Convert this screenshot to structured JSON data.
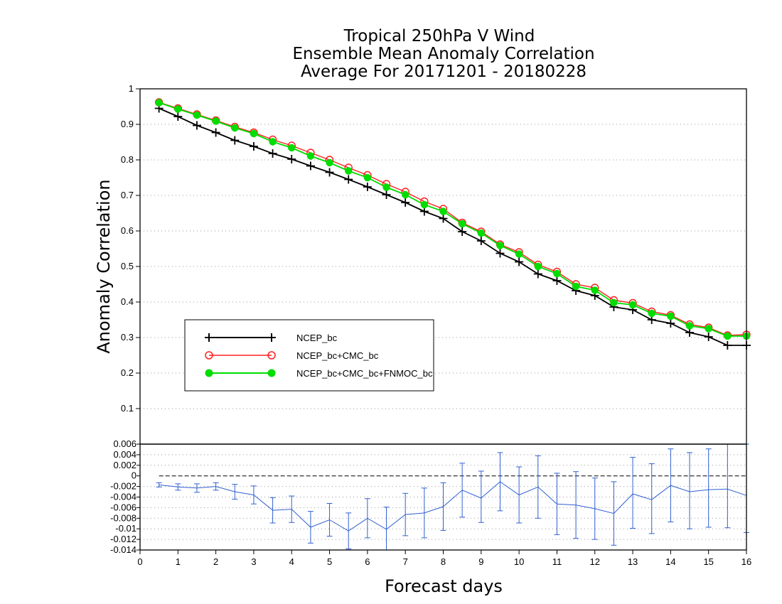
{
  "chart_data": [
    {
      "type": "line",
      "title": [
        "Tropical 250hPa V Wind",
        "Ensemble Mean Anomaly Correlation",
        "Average For 20171201 - 20180228"
      ],
      "xlabel": "Forecast days",
      "ylabel": "Anomaly Correlation",
      "xlim": [
        0,
        16
      ],
      "ylim": [
        0,
        1
      ],
      "x_ticks": [
        "0",
        "1",
        "2",
        "3",
        "4",
        "5",
        "6",
        "7",
        "8",
        "9",
        "10",
        "11",
        "12",
        "13",
        "14",
        "15",
        "16"
      ],
      "y_ticks": [
        "0.1",
        "0.2",
        "0.3",
        "0.4",
        "0.5",
        "0.6",
        "0.7",
        "0.8",
        "0.9",
        "1"
      ],
      "grid": "horizontal dotted",
      "legend_placement": "center-left",
      "x": [
        0.5,
        1,
        1.5,
        2,
        2.5,
        3,
        3.5,
        4,
        4.5,
        5,
        5.5,
        6,
        6.5,
        7,
        7.5,
        8,
        8.5,
        9,
        9.5,
        10,
        10.5,
        11,
        11.5,
        12,
        12.5,
        13,
        13.5,
        14,
        14.5,
        15,
        15.5,
        16
      ],
      "series": [
        {
          "name": "NCEP_bc",
          "color": "#000000",
          "marker": "plus",
          "values": [
            0.945,
            0.922,
            0.897,
            0.877,
            0.855,
            0.838,
            0.818,
            0.802,
            0.783,
            0.765,
            0.745,
            0.724,
            0.702,
            0.68,
            0.655,
            0.635,
            0.598,
            0.572,
            0.537,
            0.513,
            0.479,
            0.46,
            0.432,
            0.418,
            0.386,
            0.378,
            0.35,
            0.34,
            0.314,
            0.302,
            0.278,
            0.278
          ]
        },
        {
          "name": "NCEP_bc+CMC_bc",
          "color": "#ff2020",
          "marker": "open-circle",
          "values": [
            0.962,
            0.945,
            0.928,
            0.911,
            0.893,
            0.877,
            0.857,
            0.84,
            0.82,
            0.8,
            0.778,
            0.757,
            0.732,
            0.71,
            0.683,
            0.662,
            0.623,
            0.598,
            0.562,
            0.54,
            0.505,
            0.485,
            0.45,
            0.44,
            0.405,
            0.397,
            0.373,
            0.363,
            0.337,
            0.328,
            0.306,
            0.308
          ]
        },
        {
          "name": "NCEP_bc+CMC_bc+FNMOC_bc",
          "color": "#00dd00",
          "marker": "filled-circle",
          "values": [
            0.961,
            0.943,
            0.926,
            0.909,
            0.89,
            0.874,
            0.851,
            0.834,
            0.811,
            0.792,
            0.769,
            0.75,
            0.723,
            0.702,
            0.674,
            0.655,
            0.62,
            0.594,
            0.559,
            0.535,
            0.5,
            0.48,
            0.444,
            0.433,
            0.398,
            0.392,
            0.368,
            0.36,
            0.333,
            0.325,
            0.304,
            0.304
          ]
        }
      ]
    },
    {
      "type": "line",
      "xlim": [
        0,
        16
      ],
      "ylim": [
        -0.014,
        0.006
      ],
      "y_ticks": [
        "-0.014",
        "-0.012",
        "-0.01",
        "-0.008",
        "-0.006",
        "-0.004",
        "-0.002",
        "0",
        "0.002",
        "0.004",
        "0.006"
      ],
      "zero_line": "dashed",
      "grid": "horizontal dotted",
      "x": [
        0.5,
        1,
        1.5,
        2,
        2.5,
        3,
        3.5,
        4,
        4.5,
        5,
        5.5,
        6,
        6.5,
        7,
        7.5,
        8,
        8.5,
        9,
        9.5,
        10,
        10.5,
        11,
        11.5,
        12,
        12.5,
        13,
        13.5,
        14,
        14.5,
        15,
        15.5,
        16
      ],
      "series": [
        {
          "color": "#3060d0",
          "marker": "errorbar",
          "values": [
            -0.0017,
            -0.0021,
            -0.0023,
            -0.002,
            -0.003,
            -0.0036,
            -0.0065,
            -0.0063,
            -0.0097,
            -0.0083,
            -0.0104,
            -0.008,
            -0.0101,
            -0.0073,
            -0.007,
            -0.0058,
            -0.0027,
            -0.0042,
            -0.0011,
            -0.0036,
            -0.0021,
            -0.0053,
            -0.0055,
            -0.0062,
            -0.0071,
            -0.0034,
            -0.0045,
            -0.0018,
            -0.003,
            -0.0026,
            -0.0025,
            -0.0037
          ],
          "err_low": [
            -0.0021,
            -0.0027,
            -0.0031,
            -0.0027,
            -0.0044,
            -0.0053,
            -0.0089,
            -0.0088,
            -0.0127,
            -0.0114,
            -0.0138,
            -0.0117,
            -0.0143,
            -0.0113,
            -0.0117,
            -0.0103,
            -0.0078,
            -0.0088,
            -0.0066,
            -0.0089,
            -0.008,
            -0.0111,
            -0.0118,
            -0.012,
            -0.0131,
            -0.0099,
            -0.0109,
            -0.0087,
            -0.01,
            -0.0097,
            -0.0098,
            -0.0107
          ],
          "err_high": [
            -0.0013,
            -0.0015,
            -0.0015,
            -0.0013,
            -0.0016,
            -0.0019,
            -0.0041,
            -0.0038,
            -0.0067,
            -0.0052,
            -0.007,
            -0.0043,
            -0.0059,
            -0.0033,
            -0.0023,
            -0.0013,
            0.0024,
            0.0009,
            0.0044,
            0.0017,
            0.0038,
            0.0005,
            0.0008,
            -0.0004,
            -0.0011,
            0.0035,
            0.0023,
            0.0051,
            0.0044,
            0.0051,
            0.006,
            0.006
          ]
        }
      ]
    }
  ]
}
